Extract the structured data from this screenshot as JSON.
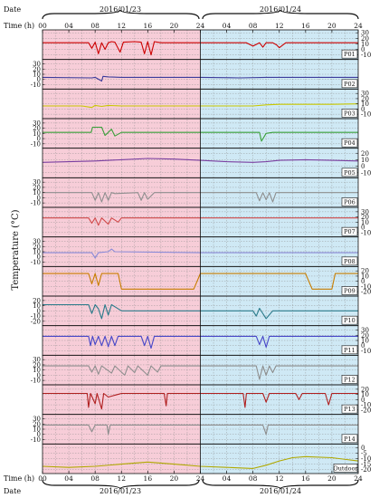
{
  "header": {
    "date_label": "Date",
    "time_label": "Time (h)",
    "date1": "2016/01/23",
    "date2": "2016/01/24"
  },
  "ylabel": "Temperature (°C)",
  "x_ticks": [
    "00",
    "04",
    "08",
    "12",
    "16",
    "20",
    "24",
    "04",
    "08",
    "12",
    "16",
    "20",
    "24"
  ],
  "colors": {
    "day1_bg": "#f7cdd8",
    "day2_bg": "#cfe9f5"
  },
  "chart_data": {
    "type": "line",
    "xlabel": "Time (h)",
    "ylabel": "Temperature (°C)",
    "x_range_hours": [
      0,
      48
    ],
    "dates": [
      "2016/01/23",
      "2016/01/24"
    ],
    "series": [
      {
        "name": "P01",
        "color": "#cc0000",
        "axis": "right",
        "ticks": [
          30,
          20,
          10,
          0,
          -10
        ],
        "ylim": [
          -15,
          32
        ],
        "points": [
          [
            0,
            12
          ],
          [
            7,
            12
          ],
          [
            7.5,
            2
          ],
          [
            8,
            13
          ],
          [
            8.5,
            -8
          ],
          [
            9,
            12
          ],
          [
            9.5,
            0
          ],
          [
            10,
            12
          ],
          [
            10.5,
            14
          ],
          [
            11,
            13
          ],
          [
            11.8,
            -5
          ],
          [
            12.3,
            13
          ],
          [
            14,
            14
          ],
          [
            15,
            13
          ],
          [
            15.5,
            -8
          ],
          [
            16,
            14
          ],
          [
            16.5,
            -10
          ],
          [
            17,
            14
          ],
          [
            18,
            12
          ],
          [
            24,
            12
          ],
          [
            31,
            12
          ],
          [
            32,
            6
          ],
          [
            33,
            12
          ],
          [
            33.5,
            4
          ],
          [
            34,
            12
          ],
          [
            35,
            12
          ],
          [
            35.6,
            8
          ],
          [
            36,
            3
          ],
          [
            37,
            12
          ],
          [
            48,
            12
          ]
        ]
      },
      {
        "name": "P02",
        "color": "#3a3a9a",
        "axis": "left",
        "ticks": [
          30,
          20,
          10,
          0,
          -10
        ],
        "ylim": [
          -15,
          35
        ],
        "points": [
          [
            0,
            4
          ],
          [
            7.5,
            3
          ],
          [
            8,
            4
          ],
          [
            9,
            -3
          ],
          [
            9.2,
            6
          ],
          [
            10,
            5
          ],
          [
            12,
            4
          ],
          [
            24,
            4
          ],
          [
            30,
            3
          ],
          [
            34,
            4
          ],
          [
            48,
            4
          ]
        ]
      },
      {
        "name": "P03",
        "color": "#c8c800",
        "axis": "right",
        "ticks": [
          30,
          20,
          10,
          0,
          -10
        ],
        "ylim": [
          -15,
          35
        ],
        "points": [
          [
            0,
            6
          ],
          [
            6,
            6
          ],
          [
            7.5,
            3
          ],
          [
            8,
            7
          ],
          [
            9,
            5
          ],
          [
            10,
            7
          ],
          [
            12,
            6
          ],
          [
            24,
            6
          ],
          [
            32,
            6
          ],
          [
            34,
            8
          ],
          [
            36,
            9
          ],
          [
            40,
            9
          ],
          [
            44,
            9
          ],
          [
            48,
            10
          ]
        ]
      },
      {
        "name": "P04",
        "color": "#3aa03a",
        "axis": "left",
        "ticks": [
          30,
          20,
          10,
          0,
          -10
        ],
        "ylim": [
          -15,
          35
        ],
        "points": [
          [
            0,
            12
          ],
          [
            7.4,
            12
          ],
          [
            7.6,
            22
          ],
          [
            9,
            22
          ],
          [
            9.5,
            6
          ],
          [
            10,
            12
          ],
          [
            10.5,
            18
          ],
          [
            11,
            5
          ],
          [
            12,
            12
          ],
          [
            24,
            12
          ],
          [
            33,
            12
          ],
          [
            33.3,
            -5
          ],
          [
            34,
            10
          ],
          [
            35,
            12
          ],
          [
            48,
            12
          ]
        ]
      },
      {
        "name": "P05",
        "color": "#7a3fa0",
        "axis": "right",
        "ticks": [
          20,
          10,
          0,
          -10
        ],
        "ylim": [
          -15,
          25
        ],
        "points": [
          [
            0,
            6
          ],
          [
            4,
            7
          ],
          [
            8,
            8
          ],
          [
            12,
            10
          ],
          [
            16,
            12
          ],
          [
            20,
            11
          ],
          [
            24,
            9
          ],
          [
            28,
            7
          ],
          [
            32,
            6
          ],
          [
            34,
            7
          ],
          [
            36,
            9
          ],
          [
            40,
            10
          ],
          [
            44,
            9
          ],
          [
            48,
            8
          ]
        ]
      },
      {
        "name": "P06",
        "color": "#8e8e8e",
        "axis": "left",
        "ticks": [
          30,
          20,
          10,
          0,
          -10
        ],
        "ylim": [
          -15,
          35
        ],
        "points": [
          [
            0,
            10
          ],
          [
            7.5,
            10
          ],
          [
            8,
            -5
          ],
          [
            8.5,
            10
          ],
          [
            9,
            -8
          ],
          [
            9.5,
            10
          ],
          [
            10,
            -5
          ],
          [
            10.5,
            10
          ],
          [
            11,
            8
          ],
          [
            14.5,
            10
          ],
          [
            15,
            -5
          ],
          [
            15.5,
            10
          ],
          [
            16,
            -3
          ],
          [
            17,
            10
          ],
          [
            24,
            10
          ],
          [
            32.5,
            10
          ],
          [
            33,
            -6
          ],
          [
            33.5,
            10
          ],
          [
            34,
            -4
          ],
          [
            34.5,
            10
          ],
          [
            35,
            -8
          ],
          [
            35.5,
            10
          ],
          [
            36,
            10
          ],
          [
            48,
            10
          ]
        ]
      },
      {
        "name": "P07",
        "color": "#d04848",
        "axis": "right",
        "ticks": [
          30,
          20,
          10,
          0,
          -10
        ],
        "ylim": [
          -15,
          35
        ],
        "points": [
          [
            0,
            18
          ],
          [
            7,
            18
          ],
          [
            7.5,
            8
          ],
          [
            8,
            18
          ],
          [
            8.5,
            4
          ],
          [
            9,
            18
          ],
          [
            10,
            6
          ],
          [
            10.5,
            18
          ],
          [
            11.5,
            10
          ],
          [
            12,
            18
          ],
          [
            24,
            18
          ],
          [
            48,
            18
          ]
        ]
      },
      {
        "name": "P08",
        "color": "#8a8ad8",
        "axis": "left",
        "ticks": [
          30,
          20,
          10,
          0,
          -10
        ],
        "ylim": [
          -15,
          35
        ],
        "points": [
          [
            0,
            8
          ],
          [
            7.5,
            8
          ],
          [
            8,
            -2
          ],
          [
            8.5,
            8
          ],
          [
            10,
            10
          ],
          [
            10.5,
            15
          ],
          [
            11,
            10
          ],
          [
            24,
            8
          ],
          [
            48,
            8
          ]
        ]
      },
      {
        "name": "P09",
        "color": "#c87d00",
        "axis": "right",
        "ticks": [
          20,
          10,
          0,
          -10,
          -20
        ],
        "ylim": [
          -25,
          25
        ],
        "points": [
          [
            0,
            15
          ],
          [
            7,
            15
          ],
          [
            7.5,
            -5
          ],
          [
            8,
            15
          ],
          [
            8.5,
            -8
          ],
          [
            9,
            15
          ],
          [
            10,
            15
          ],
          [
            11.5,
            15
          ],
          [
            12,
            -15
          ],
          [
            23,
            -15
          ],
          [
            24,
            15
          ],
          [
            40,
            15
          ],
          [
            41,
            -15
          ],
          [
            44,
            -15
          ],
          [
            44.5,
            15
          ],
          [
            48,
            15
          ]
        ]
      },
      {
        "name": "P10",
        "color": "#2a7a8a",
        "axis": "left",
        "ticks": [
          20,
          10,
          0,
          -10,
          -20
        ],
        "ylim": [
          -25,
          25
        ],
        "points": [
          [
            0,
            12
          ],
          [
            7,
            12
          ],
          [
            7.5,
            -5
          ],
          [
            8,
            12
          ],
          [
            8.5,
            4
          ],
          [
            9,
            -15
          ],
          [
            9.5,
            12
          ],
          [
            10,
            -8
          ],
          [
            10.5,
            12
          ],
          [
            12,
            0
          ],
          [
            24,
            0
          ],
          [
            32,
            0
          ],
          [
            32.5,
            -10
          ],
          [
            33,
            5
          ],
          [
            34,
            -15
          ],
          [
            35,
            0
          ],
          [
            48,
            0
          ]
        ]
      },
      {
        "name": "P11",
        "color": "#4646c8",
        "axis": "right",
        "ticks": [
          30,
          20,
          10,
          0,
          -10
        ],
        "ylim": [
          -15,
          35
        ],
        "points": [
          [
            0,
            18
          ],
          [
            7,
            18
          ],
          [
            7.3,
            0
          ],
          [
            7.6,
            18
          ],
          [
            8,
            2
          ],
          [
            8.5,
            18
          ],
          [
            9,
            0
          ],
          [
            9.5,
            18
          ],
          [
            10,
            -2
          ],
          [
            10.5,
            18
          ],
          [
            11,
            0
          ],
          [
            11.5,
            18
          ],
          [
            15,
            18
          ],
          [
            15.5,
            0
          ],
          [
            16,
            18
          ],
          [
            16.5,
            -5
          ],
          [
            17,
            18
          ],
          [
            24,
            18
          ],
          [
            32.5,
            18
          ],
          [
            33,
            2
          ],
          [
            33.5,
            18
          ],
          [
            34,
            -3
          ],
          [
            34.5,
            18
          ],
          [
            48,
            18
          ]
        ]
      },
      {
        "name": "P12",
        "color": "#8e8e8e",
        "axis": "left",
        "ticks": [
          30,
          20,
          10,
          0,
          -10
        ],
        "ylim": [
          -15,
          35
        ],
        "points": [
          [
            0,
            18
          ],
          [
            7,
            18
          ],
          [
            7.5,
            6
          ],
          [
            8,
            18
          ],
          [
            8.5,
            2
          ],
          [
            9,
            18
          ],
          [
            10.5,
            4
          ],
          [
            11,
            18
          ],
          [
            12.5,
            0
          ],
          [
            13,
            18
          ],
          [
            14,
            5
          ],
          [
            14.5,
            18
          ],
          [
            16,
            0
          ],
          [
            16.5,
            18
          ],
          [
            17.5,
            6
          ],
          [
            18,
            18
          ],
          [
            24,
            18
          ],
          [
            32.5,
            18
          ],
          [
            33,
            -8
          ],
          [
            33.5,
            18
          ],
          [
            34,
            0
          ],
          [
            34.5,
            18
          ],
          [
            35,
            5
          ],
          [
            35.5,
            18
          ],
          [
            48,
            18
          ]
        ]
      },
      {
        "name": "P13",
        "color": "#b02020",
        "axis": "right",
        "ticks": [
          20,
          10,
          0,
          -10,
          -20
        ],
        "ylim": [
          -25,
          25
        ],
        "points": [
          [
            0,
            12
          ],
          [
            6.8,
            12
          ],
          [
            7,
            -15
          ],
          [
            7.3,
            12
          ],
          [
            8,
            -8
          ],
          [
            8.3,
            12
          ],
          [
            9,
            -18
          ],
          [
            9.3,
            12
          ],
          [
            10,
            5
          ],
          [
            12,
            12
          ],
          [
            18.5,
            12
          ],
          [
            18.8,
            -12
          ],
          [
            19,
            12
          ],
          [
            24,
            12
          ],
          [
            30.5,
            12
          ],
          [
            30.8,
            -15
          ],
          [
            31,
            12
          ],
          [
            33.5,
            12
          ],
          [
            34,
            -5
          ],
          [
            34.5,
            12
          ],
          [
            38.5,
            12
          ],
          [
            39,
            0
          ],
          [
            39.5,
            12
          ],
          [
            43,
            12
          ],
          [
            43.5,
            -10
          ],
          [
            44,
            12
          ],
          [
            48,
            12
          ]
        ]
      },
      {
        "name": "P14",
        "color": "#8e8e8e",
        "axis": "left",
        "ticks": [
          30,
          20,
          10,
          0,
          -10
        ],
        "ylim": [
          -15,
          35
        ],
        "points": [
          [
            0,
            18
          ],
          [
            7,
            18
          ],
          [
            7.5,
            5
          ],
          [
            8,
            18
          ],
          [
            9.8,
            18
          ],
          [
            10,
            0
          ],
          [
            10.3,
            18
          ],
          [
            24,
            18
          ],
          [
            33.5,
            18
          ],
          [
            34,
            0
          ],
          [
            34.3,
            18
          ],
          [
            48,
            18
          ]
        ]
      },
      {
        "name": "Outdoor",
        "color": "#b0a800",
        "axis": "right",
        "ticks": [
          0,
          -5,
          -10,
          -15,
          -20
        ],
        "ylim": [
          -22,
          2
        ],
        "points": [
          [
            0,
            -17
          ],
          [
            4,
            -18
          ],
          [
            8,
            -17
          ],
          [
            12,
            -15
          ],
          [
            16,
            -13
          ],
          [
            20,
            -15
          ],
          [
            24,
            -17
          ],
          [
            28,
            -18
          ],
          [
            32,
            -19
          ],
          [
            34,
            -16
          ],
          [
            36,
            -12
          ],
          [
            38,
            -9
          ],
          [
            40,
            -8
          ],
          [
            44,
            -9
          ],
          [
            48,
            -12
          ]
        ]
      }
    ]
  }
}
